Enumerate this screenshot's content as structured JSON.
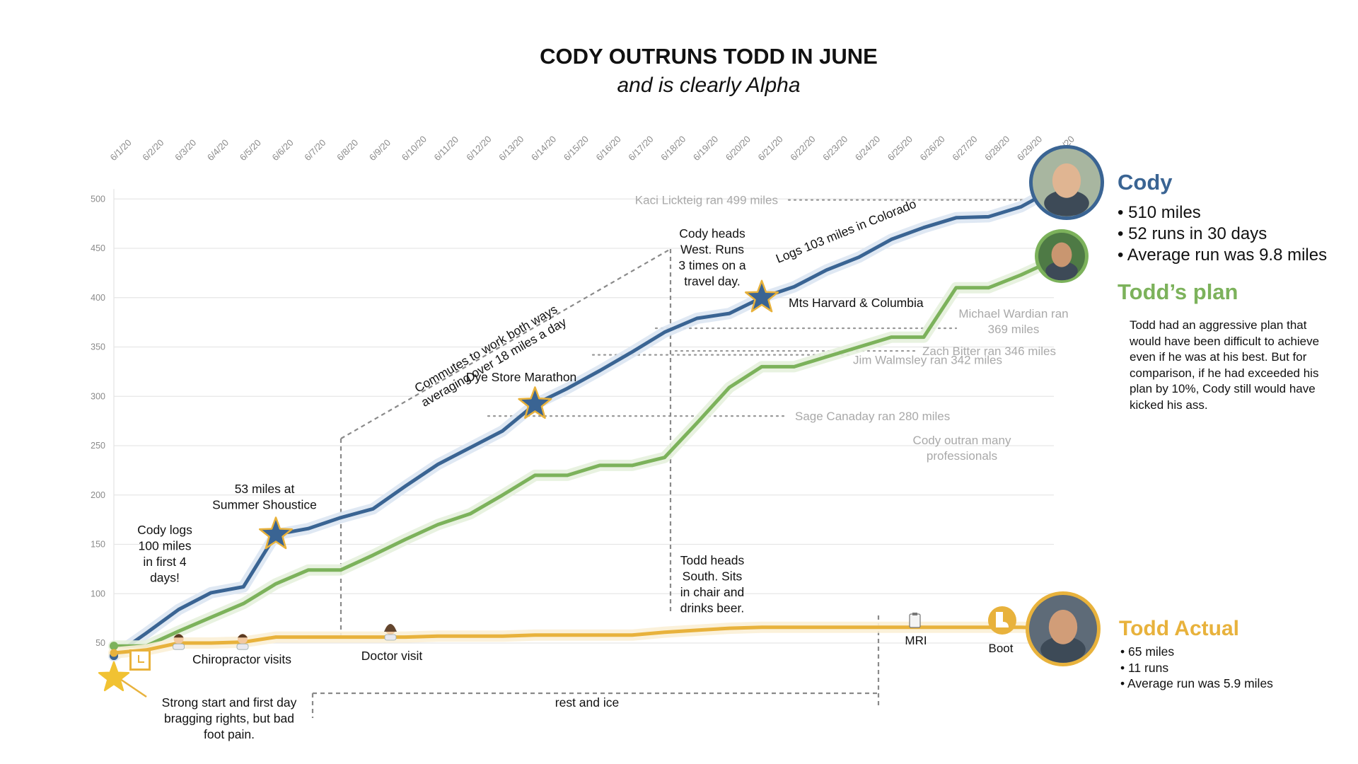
{
  "page": {
    "title": "CODY OUTRUNS TODD IN JUNE",
    "subtitle": "and is clearly Alpha"
  },
  "chart_data": {
    "type": "line",
    "title": "CODY OUTRUNS TODD IN JUNE",
    "subtitle": "and is clearly Alpha",
    "xlabel": "",
    "ylabel": "",
    "x": [
      "6/1/20",
      "6/2/20",
      "6/3/20",
      "6/4/20",
      "6/5/20",
      "6/6/20",
      "6/7/20",
      "6/8/20",
      "6/9/20",
      "6/10/20",
      "6/11/20",
      "6/12/20",
      "6/13/20",
      "6/14/20",
      "6/15/20",
      "6/16/20",
      "6/17/20",
      "6/18/20",
      "6/19/20",
      "6/20/20",
      "6/21/20",
      "6/22/20",
      "6/23/20",
      "6/24/20",
      "6/25/20",
      "6/26/20",
      "6/27/20",
      "6/28/20",
      "6/29/20",
      "6/30/20"
    ],
    "yticks": [
      50,
      100,
      150,
      200,
      250,
      300,
      350,
      400,
      450,
      500
    ],
    "ylim": [
      40,
      510
    ],
    "grid": true,
    "series": [
      {
        "name": "Cody",
        "color": "#3a6493",
        "values": [
          37,
          60,
          84,
          101,
          107,
          160,
          166,
          177,
          186,
          209,
          231,
          248,
          265,
          292,
          308,
          326,
          345,
          365,
          379,
          384,
          400,
          411,
          428,
          441,
          459,
          471,
          481,
          482,
          492,
          510
        ]
      },
      {
        "name": "Todd’s plan",
        "color": "#7cb25b",
        "values": [
          47,
          47,
          62,
          76,
          90,
          110,
          124,
          124,
          139,
          155,
          170,
          181,
          200,
          220,
          220,
          230,
          230,
          238,
          273,
          309,
          330,
          330,
          340,
          350,
          360,
          360,
          410,
          410,
          423,
          438
        ]
      },
      {
        "name": "Todd Actual",
        "color": "#e8b23c",
        "values": [
          40,
          43,
          50,
          50,
          51,
          56,
          56,
          56,
          56,
          56,
          57,
          57,
          57,
          58,
          58,
          58,
          58,
          61,
          63,
          65,
          66,
          66,
          66,
          66,
          66,
          66,
          66,
          66,
          66,
          65
        ]
      }
    ],
    "reference_lines": [
      {
        "label": "Kaci Lickteig ran 499 miles",
        "value": 499
      },
      {
        "label": "Michael Wardian ran 369 miles",
        "value": 369
      },
      {
        "label": "Zach Bitter ran 346 miles",
        "value": 346
      },
      {
        "label": "Jim Walmsley ran 342 miles",
        "value": 342
      },
      {
        "label": "Sage Canaday ran 280 miles",
        "value": 280
      }
    ],
    "annotations": [
      {
        "text": "Cody logs 100 miles in first 4 days!"
      },
      {
        "text": "53 miles at Summer Shoustice"
      },
      {
        "text": "Commutes to work both ways averaging over 18 miles a day"
      },
      {
        "text": "Dye Store Marathon"
      },
      {
        "text": "Cody heads West. Runs 3 times on a travel day."
      },
      {
        "text": "Logs 103 miles in Colorado"
      },
      {
        "text": "Mts Harvard & Columbia"
      },
      {
        "text": "Cody outran many professionals"
      },
      {
        "text": "Chiropractor visits"
      },
      {
        "text": "Doctor visit"
      },
      {
        "text": "Todd heads South. Sits in chair and drinks beer."
      },
      {
        "text": "MRI"
      },
      {
        "text": "Boot"
      },
      {
        "text": "rest and ice"
      },
      {
        "text": "Strong start and first day bragging rights, but bad foot pain."
      }
    ]
  },
  "legend": {
    "cody": {
      "name": "Cody",
      "color": "#3a6493",
      "items": [
        "510 miles",
        "52 runs in 30 days",
        "Average run was 9.8 miles"
      ]
    },
    "plan": {
      "name": "Todd’s plan",
      "color": "#7cb25b",
      "description": "Todd had an aggressive plan that would have been difficult to achieve even if he was at his best. But for comparison, if he had exceeded his plan by 10%, Cody still would have kicked his ass."
    },
    "actual": {
      "name": "Todd Actual",
      "color": "#e8b23c",
      "items": [
        "65 miles",
        "11 runs",
        "Average run was 5.9 miles"
      ]
    }
  },
  "icons": [
    "star-icon",
    "doctor-icon",
    "clipboard-icon",
    "boot-icon",
    "avatar-photo"
  ]
}
